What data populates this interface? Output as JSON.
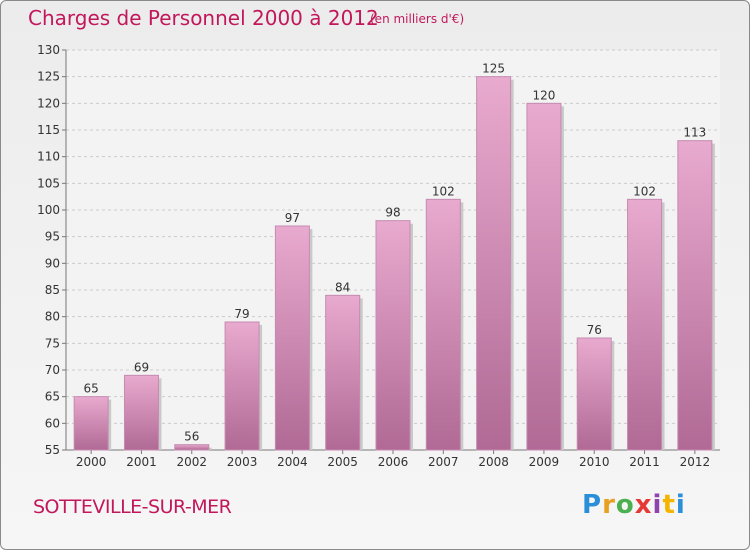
{
  "header": {
    "title": "Charges de Personnel 2000 à 2012",
    "subtitle": "(en milliers d'€)"
  },
  "footer": {
    "commune": "SOTTEVILLE-SUR-MER",
    "logo_text": "Proxiti"
  },
  "colors": {
    "accent": "#c2185b",
    "bar_top": "#e9aacf",
    "bar_bottom": "#b06a95",
    "grid": "#cccccc"
  },
  "chart_data": {
    "type": "bar",
    "title": "Charges de Personnel 2000 à 2012",
    "subtitle": "(en milliers d'€)",
    "xlabel": "",
    "ylabel": "",
    "categories": [
      "2000",
      "2001",
      "2002",
      "2003",
      "2004",
      "2005",
      "2006",
      "2007",
      "2008",
      "2009",
      "2010",
      "2011",
      "2012"
    ],
    "values": [
      65,
      69,
      56,
      79,
      97,
      84,
      98,
      102,
      125,
      120,
      76,
      102,
      113
    ],
    "ylim": [
      55,
      130
    ],
    "yticks": [
      55,
      60,
      65,
      70,
      75,
      80,
      85,
      90,
      95,
      100,
      105,
      110,
      115,
      120,
      125,
      130
    ],
    "grid": true,
    "data_labels": true
  }
}
